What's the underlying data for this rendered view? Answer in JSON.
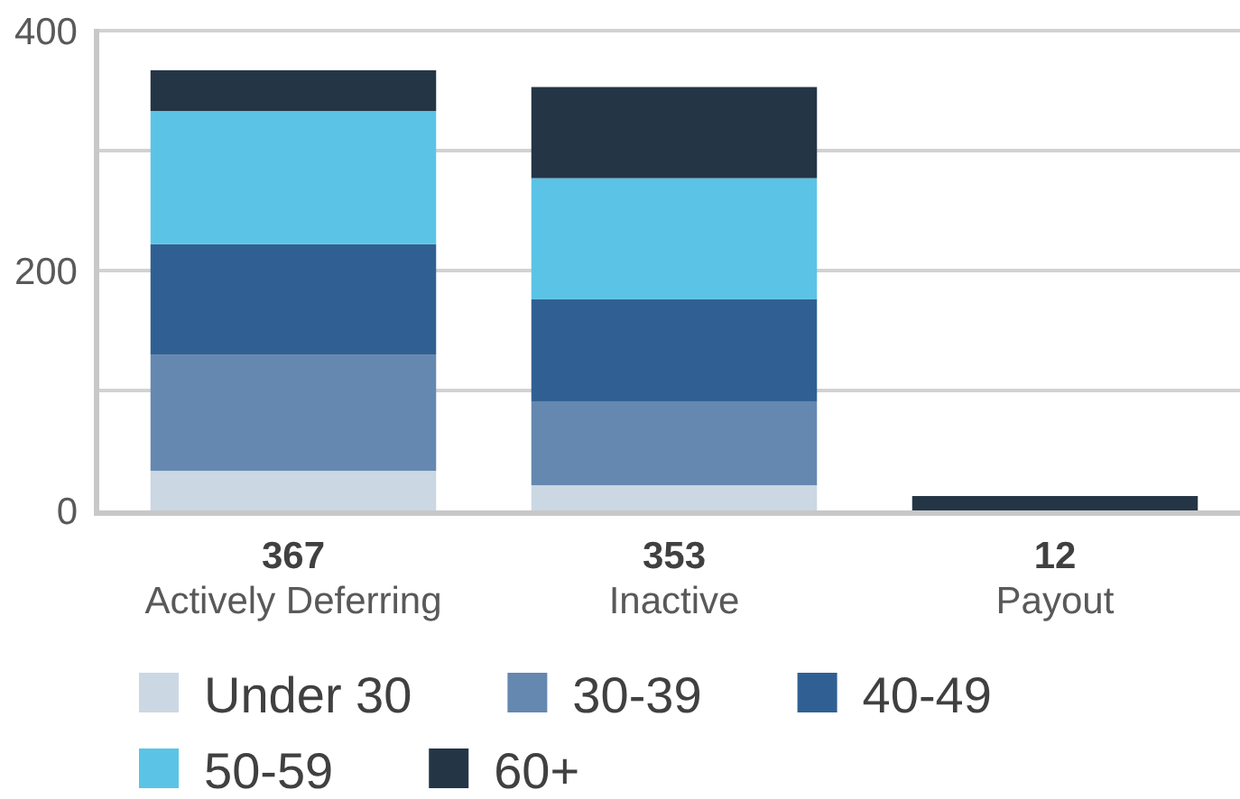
{
  "chart_data": {
    "type": "bar",
    "stacked": true,
    "categories": [
      "Actively Deferring",
      "Inactive",
      "Payout"
    ],
    "series": [
      {
        "name": "Under 30",
        "color": "#cbd7e3",
        "values": [
          33,
          21,
          0
        ]
      },
      {
        "name": "30-39",
        "color": "#6588b0",
        "values": [
          97,
          70,
          0
        ]
      },
      {
        "name": "40-49",
        "color": "#306093",
        "values": [
          92,
          85,
          0
        ]
      },
      {
        "name": "50-59",
        "color": "#5bc4e6",
        "values": [
          111,
          101,
          0
        ]
      },
      {
        "name": "60+",
        "color": "#243546",
        "values": [
          34,
          76,
          12
        ]
      }
    ],
    "ylim": [
      0,
      400
    ],
    "yticks": [
      0,
      {
        "value": 100,
        "label": null
      },
      200,
      {
        "value": 300,
        "label": null
      },
      400
    ],
    "grid": "y",
    "legend": "bottom",
    "totals": [
      "367",
      "353",
      "12"
    ]
  }
}
